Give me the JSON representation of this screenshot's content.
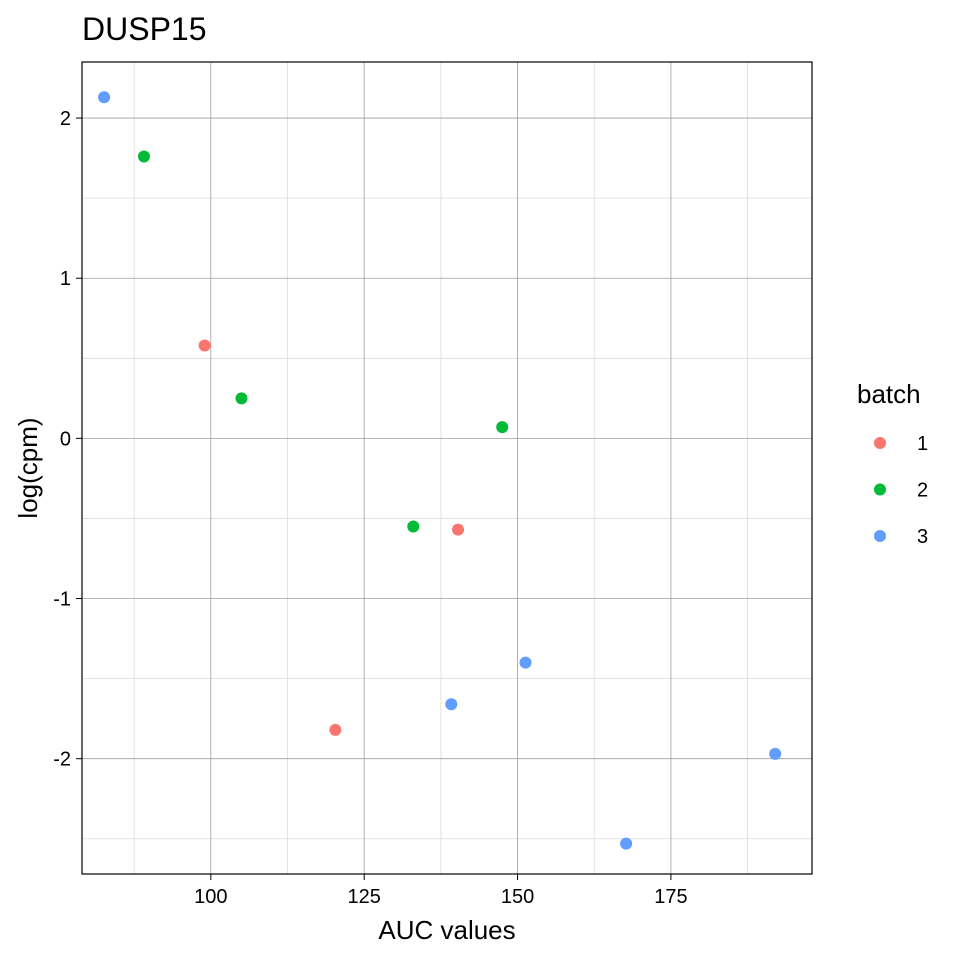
{
  "chart_data": {
    "type": "scatter",
    "title": "DUSP15",
    "xlabel": "AUC values",
    "ylabel": "log(cpm)",
    "xlim": [
      79,
      198
    ],
    "ylim": [
      -2.72,
      2.35
    ],
    "x_major_ticks": [
      100,
      125,
      150,
      175
    ],
    "x_minor_ticks": [
      87.5,
      112.5,
      137.5,
      162.5,
      187.5
    ],
    "y_major_ticks": [
      -2,
      -1,
      0,
      1,
      2
    ],
    "y_minor_ticks": [
      -2.5,
      -1.5,
      -0.5,
      0.5,
      1.5
    ],
    "x_tick_labels": [
      "100",
      "125",
      "150",
      "175"
    ],
    "y_tick_labels": [
      "-2",
      "-1",
      "0",
      "1",
      "2"
    ],
    "grid": true,
    "legend": {
      "title": "batch",
      "placement": "right"
    },
    "series": [
      {
        "name": "1",
        "color": "#F8766D",
        "points": [
          [
            99,
            0.58
          ],
          [
            140.3,
            -0.57
          ],
          [
            120.3,
            -1.82
          ]
        ]
      },
      {
        "name": "2",
        "color": "#00BA38",
        "points": [
          [
            89.1,
            1.76
          ],
          [
            105,
            0.25
          ],
          [
            147.5,
            0.07
          ],
          [
            133,
            -0.55
          ]
        ]
      },
      {
        "name": "3",
        "color": "#619CFF",
        "points": [
          [
            82.6,
            2.13
          ],
          [
            151.3,
            -1.4
          ],
          [
            139.2,
            -1.66
          ],
          [
            192,
            -1.97
          ],
          [
            167.7,
            -2.53
          ]
        ]
      }
    ]
  }
}
